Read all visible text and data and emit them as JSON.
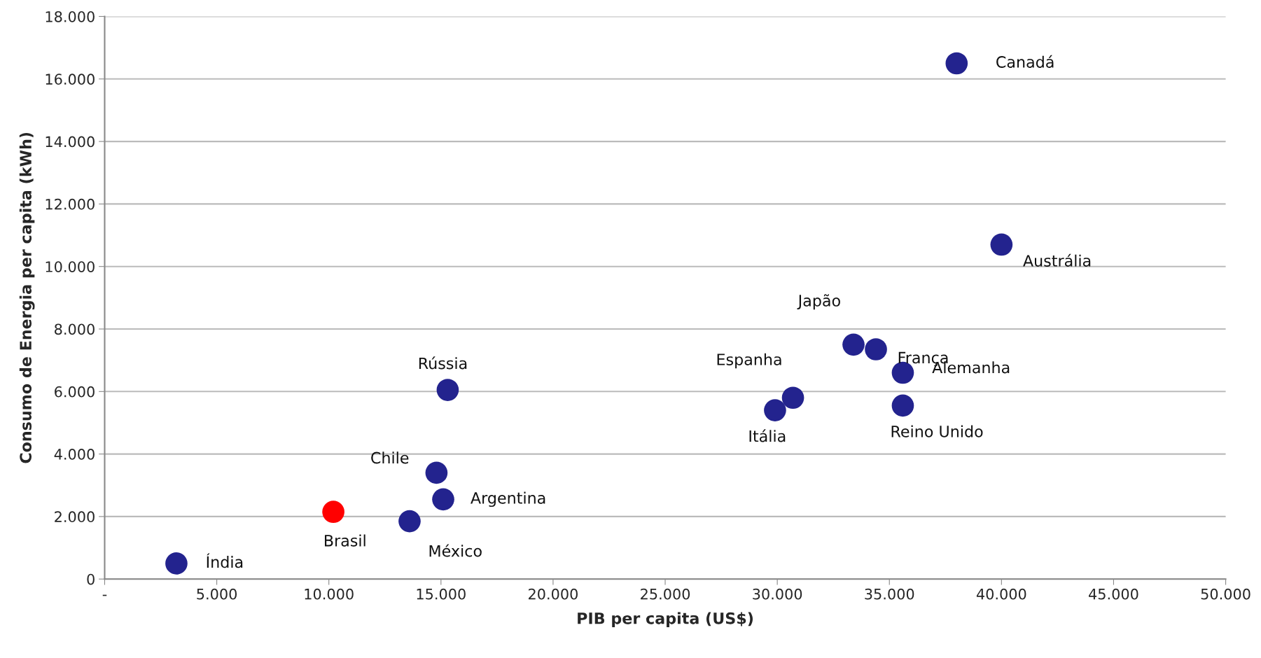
{
  "chart_data": {
    "type": "scatter",
    "xlabel": "PIB per capita (US$)",
    "ylabel": "Consumo de Energia per capita (kWh)",
    "x": [
      38000,
      40000,
      33400,
      34400,
      35600,
      35600,
      30700,
      29900,
      15300,
      14800,
      15100,
      13600,
      10200,
      3200
    ],
    "values": [
      16500,
      10700,
      7500,
      7350,
      6600,
      5550,
      5800,
      5400,
      6050,
      3400,
      2550,
      1850,
      2150,
      500
    ],
    "colors": [
      "#23238e",
      "#23238e",
      "#23238e",
      "#23238e",
      "#23238e",
      "#23238e",
      "#23238e",
      "#23238e",
      "#23238e",
      "#23238e",
      "#23238e",
      "#23238e",
      "#ff0000",
      "#23238e"
    ],
    "marker": "circle",
    "grid": "y",
    "xlim": [
      0,
      50000
    ],
    "ylim": [
      0,
      18000
    ],
    "xticks": [
      {
        "value": 0,
        "label": "-"
      },
      {
        "value": 5000,
        "label": "5.000"
      },
      {
        "value": 10000,
        "label": "10.000"
      },
      {
        "value": 15000,
        "label": "15.000"
      },
      {
        "value": 20000,
        "label": "20.000"
      },
      {
        "value": 25000,
        "label": "25.000"
      },
      {
        "value": 30000,
        "label": "30.000"
      },
      {
        "value": 35000,
        "label": "35.000"
      },
      {
        "value": 40000,
        "label": "40.000"
      },
      {
        "value": 45000,
        "label": "45.000"
      },
      {
        "value": 50000,
        "label": "50.000"
      }
    ],
    "yticks": [
      0,
      {
        "value": 2000,
        "label": "2.000"
      },
      {
        "value": 4000,
        "label": "4.000"
      },
      {
        "value": 6000,
        "label": "6.000"
      },
      {
        "value": 8000,
        "label": "8.000"
      },
      {
        "value": 10000,
        "label": "10.000"
      },
      {
        "value": 12000,
        "label": "12.000"
      },
      {
        "value": 14000,
        "label": "14.000"
      },
      {
        "value": 16000,
        "label": "16.000"
      },
      {
        "value": 18000,
        "label": "18.000"
      }
    ],
    "annotations": [
      {
        "text": "Canadá",
        "x": 38000,
        "y": 16500
      },
      {
        "text": "Austrália",
        "x": 40000,
        "y": 10700
      },
      {
        "text": "Japão",
        "x": 33400,
        "y": 7500
      },
      {
        "text": "França",
        "x": 34400,
        "y": 7350
      },
      {
        "text": "Alemanha",
        "x": 35600,
        "y": 6600
      },
      {
        "text": "Reino Unido",
        "x": 35600,
        "y": 5550
      },
      {
        "text": "Espanha",
        "x": 30700,
        "y": 5800
      },
      {
        "text": "Itália",
        "x": 29900,
        "y": 5400
      },
      {
        "text": "Rússia",
        "x": 15300,
        "y": 6050
      },
      {
        "text": "Chile",
        "x": 14800,
        "y": 3400
      },
      {
        "text": "Argentina",
        "x": 15100,
        "y": 2550
      },
      {
        "text": "México",
        "x": 13600,
        "y": 1850
      },
      {
        "text": "Brasil",
        "x": 10200,
        "y": 2150
      },
      {
        "text": "Índia",
        "x": 3200,
        "y": 500
      }
    ]
  }
}
